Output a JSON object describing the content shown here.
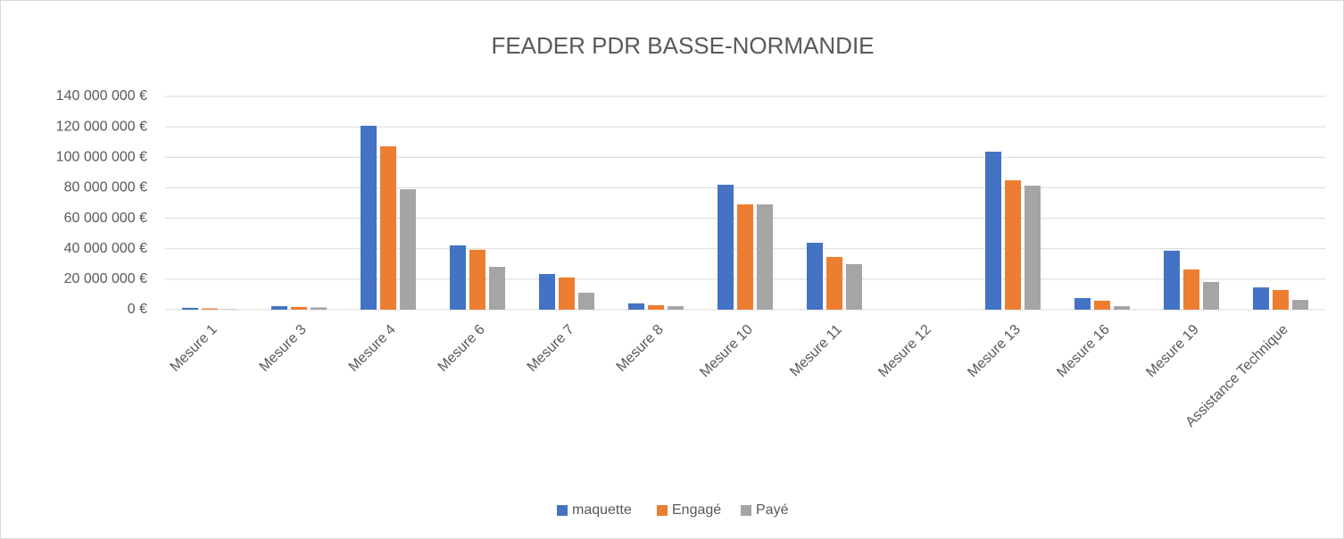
{
  "chart_data": {
    "type": "bar",
    "title": "FEADER PDR BASSE-NORMANDIE",
    "categories": [
      "Mesure 1",
      "Mesure 3",
      "Mesure 4",
      "Mesure 6",
      "Mesure 7",
      "Mesure 8",
      "Mesure 10",
      "Mesure 11",
      "Mesure 12",
      "Mesure 13",
      "Mesure 16",
      "Mesure 19",
      "Assistance Technique"
    ],
    "series": [
      {
        "name": "maquette",
        "color": "#4472c4",
        "values": [
          1200000,
          2300000,
          120700000,
          42200000,
          23400000,
          4100000,
          82000000,
          43900000,
          0,
          103700000,
          7600000,
          38700000,
          14600000
        ]
      },
      {
        "name": "Engagé",
        "color": "#ed7d31",
        "values": [
          800000,
          1800000,
          107200000,
          39300000,
          21100000,
          2900000,
          69100000,
          34600000,
          0,
          84900000,
          5900000,
          26400000,
          12900000
        ]
      },
      {
        "name": "Payé",
        "color": "#a5a5a5",
        "values": [
          300000,
          1500000,
          79000000,
          28100000,
          11100000,
          2300000,
          69100000,
          29900000,
          0,
          81400000,
          2300000,
          18200000,
          6400000
        ]
      }
    ],
    "ylim": [
      0,
      140000000
    ],
    "yticks": [
      {
        "value": 0,
        "label": "0 €"
      },
      {
        "value": 20000000,
        "label": "20 000 000 €"
      },
      {
        "value": 40000000,
        "label": "40 000 000 €"
      },
      {
        "value": 60000000,
        "label": "60 000 000 €"
      },
      {
        "value": 80000000,
        "label": "80 000 000 €"
      },
      {
        "value": 100000000,
        "label": "100 000 000 €"
      },
      {
        "value": 120000000,
        "label": "120 000 000 €"
      },
      {
        "value": 140000000,
        "label": "140 000 000 €"
      }
    ],
    "grid": true,
    "legend": "bottom"
  }
}
